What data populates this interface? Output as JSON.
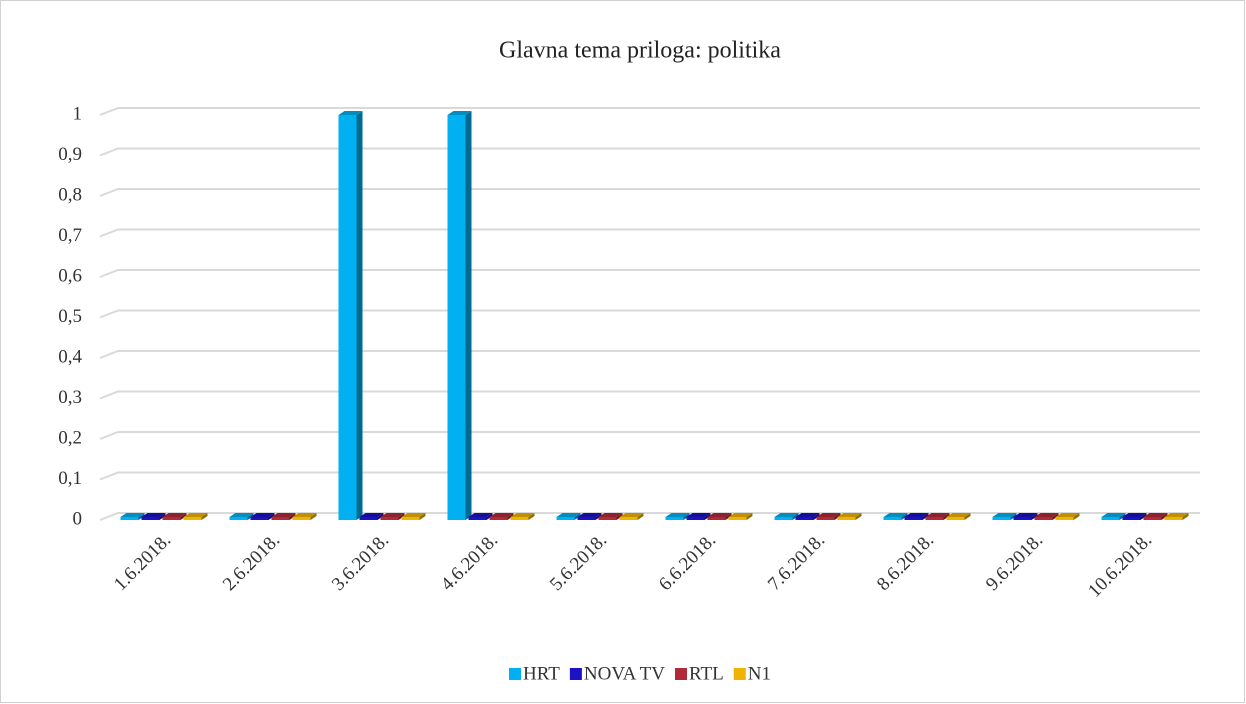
{
  "chart_data": {
    "type": "bar3d",
    "title": "Glavna tema priloga: politika",
    "categories": [
      "1.6.2018.",
      "2.6.2018.",
      "3.6.2018.",
      "4.6.2018.",
      "5.6.2018.",
      "6.6.2018.",
      "7.6.2018.",
      "8.6.2018.",
      "9.6.2018.",
      "10.6.2018."
    ],
    "series": [
      {
        "name": "HRT",
        "color": "#00b0f0",
        "values": [
          0,
          0,
          1,
          1,
          0,
          0,
          0,
          0,
          0,
          0
        ]
      },
      {
        "name": "NOVA TV",
        "color": "#1a12c4",
        "values": [
          0,
          0,
          0,
          0,
          0,
          0,
          0,
          0,
          0,
          0
        ]
      },
      {
        "name": "RTL",
        "color": "#b02a3a",
        "values": [
          0,
          0,
          0,
          0,
          0,
          0,
          0,
          0,
          0,
          0
        ]
      },
      {
        "name": "N1",
        "color": "#f0b400",
        "values": [
          0,
          0,
          0,
          0,
          0,
          0,
          0,
          0,
          0,
          0
        ]
      }
    ],
    "ylim": [
      0,
      1
    ],
    "yticks": [
      0,
      {
        "value": 0.1,
        "label": "0,1"
      },
      {
        "value": 0.2,
        "label": "0,2"
      },
      {
        "value": 0.3,
        "label": "0,3"
      },
      {
        "value": 0.4,
        "label": "0,4"
      },
      {
        "value": 0.5,
        "label": "0,5"
      },
      {
        "value": 0.6,
        "label": "0,6"
      },
      {
        "value": 0.7,
        "label": "0,7"
      },
      {
        "value": 0.8,
        "label": "0,8"
      },
      {
        "value": 0.9,
        "label": "0,9"
      },
      1
    ],
    "grid": true,
    "legend": "bottom"
  }
}
